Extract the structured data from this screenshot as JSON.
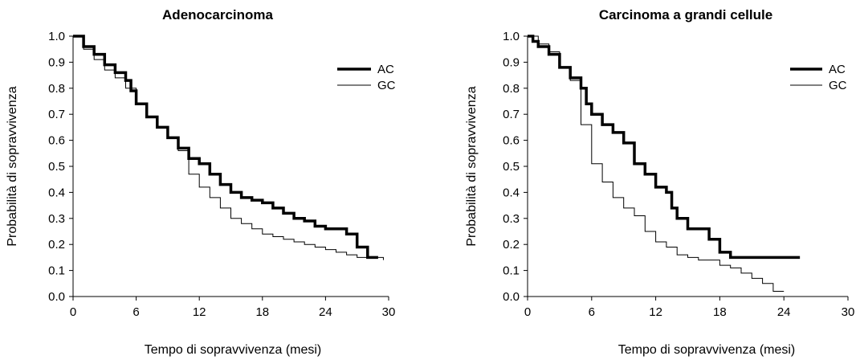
{
  "chart_data": [
    {
      "type": "line",
      "step": true,
      "title": "Adenocarcinoma",
      "xlabel": "Tempo di sopravvivenza (mesi)",
      "ylabel": "Probabilità di sopravvivenza",
      "xlim": [
        0,
        30
      ],
      "ylim": [
        0,
        1
      ],
      "xticks": [
        0,
        6,
        12,
        18,
        24,
        30
      ],
      "yticks": [
        0.0,
        0.1,
        0.2,
        0.3,
        0.4,
        0.5,
        0.6,
        0.7,
        0.8,
        0.9,
        1.0
      ],
      "xtick_labels": [
        "0",
        "6",
        "12",
        "18",
        "24",
        "30"
      ],
      "ytick_labels": [
        "0.0",
        "0.1",
        "0.2",
        "0.3",
        "0.4",
        "0.5",
        "0.6",
        "0.7",
        "0.8",
        "0.9",
        "1.0"
      ],
      "legend_position": "top-right",
      "grid": false,
      "series": [
        {
          "name": "AC",
          "style": "thick",
          "color": "#000000",
          "x": [
            0,
            1,
            2,
            3,
            4,
            5,
            5.5,
            6,
            7,
            8,
            9,
            10,
            11,
            12,
            13,
            14,
            15,
            16,
            17,
            18,
            19,
            20,
            21,
            22,
            23,
            24,
            26,
            27,
            28,
            29
          ],
          "y": [
            1.0,
            0.96,
            0.93,
            0.89,
            0.86,
            0.83,
            0.79,
            0.74,
            0.69,
            0.65,
            0.61,
            0.57,
            0.53,
            0.51,
            0.47,
            0.43,
            0.4,
            0.38,
            0.37,
            0.36,
            0.34,
            0.32,
            0.3,
            0.29,
            0.27,
            0.26,
            0.24,
            0.19,
            0.15,
            0.15
          ]
        },
        {
          "name": "GC",
          "style": "thin",
          "color": "#000000",
          "x": [
            0,
            1,
            2,
            3,
            4,
            5,
            6,
            7,
            8,
            9,
            10,
            11,
            12,
            13,
            14,
            15,
            16,
            17,
            18,
            19,
            20,
            21,
            22,
            23,
            24,
            25,
            26,
            27,
            28,
            29,
            29.5
          ],
          "y": [
            1.0,
            0.95,
            0.91,
            0.87,
            0.84,
            0.8,
            0.74,
            0.69,
            0.65,
            0.61,
            0.56,
            0.47,
            0.42,
            0.38,
            0.34,
            0.3,
            0.28,
            0.26,
            0.24,
            0.23,
            0.22,
            0.21,
            0.2,
            0.19,
            0.18,
            0.17,
            0.16,
            0.15,
            0.15,
            0.15,
            0.14
          ]
        }
      ]
    },
    {
      "type": "line",
      "step": true,
      "title": "Carcinoma a grandi cellule",
      "xlabel": "Tempo di sopravvivenza (mesi)",
      "ylabel": "Probabilità di sopravvivenza",
      "xlim": [
        0,
        30
      ],
      "ylim": [
        0,
        1
      ],
      "xticks": [
        0,
        6,
        12,
        18,
        24,
        30
      ],
      "yticks": [
        0.0,
        0.1,
        0.2,
        0.3,
        0.4,
        0.5,
        0.6,
        0.7,
        0.8,
        0.9,
        1.0
      ],
      "xtick_labels": [
        "0",
        "6",
        "12",
        "18",
        "24",
        "30"
      ],
      "ytick_labels": [
        "0.0",
        "0.1",
        "0.2",
        "0.3",
        "0.4",
        "0.5",
        "0.6",
        "0.7",
        "0.8",
        "0.9",
        "1.0"
      ],
      "legend_position": "top-right",
      "grid": false,
      "series": [
        {
          "name": "AC",
          "style": "thick",
          "color": "#000000",
          "x": [
            0,
            0.5,
            1,
            2,
            3,
            4,
            5,
            5.5,
            6,
            7,
            8,
            9,
            10,
            11,
            12,
            13,
            13.5,
            14,
            15,
            16,
            17,
            18,
            19,
            20,
            22,
            24,
            25.5
          ],
          "y": [
            1.0,
            0.98,
            0.96,
            0.93,
            0.88,
            0.84,
            0.8,
            0.74,
            0.7,
            0.66,
            0.63,
            0.59,
            0.51,
            0.47,
            0.42,
            0.4,
            0.34,
            0.3,
            0.26,
            0.26,
            0.22,
            0.17,
            0.15,
            0.15,
            0.15,
            0.15,
            0.15
          ]
        },
        {
          "name": "GC",
          "style": "thin",
          "color": "#000000",
          "x": [
            0,
            1,
            2,
            3,
            4,
            5,
            6,
            7,
            8,
            9,
            10,
            11,
            12,
            13,
            14,
            15,
            16,
            17,
            18,
            19,
            20,
            21,
            22,
            23,
            24
          ],
          "y": [
            1.0,
            0.97,
            0.94,
            0.88,
            0.83,
            0.66,
            0.51,
            0.44,
            0.38,
            0.34,
            0.31,
            0.25,
            0.21,
            0.19,
            0.16,
            0.15,
            0.14,
            0.14,
            0.12,
            0.11,
            0.09,
            0.07,
            0.05,
            0.02,
            0.02
          ]
        }
      ]
    }
  ]
}
